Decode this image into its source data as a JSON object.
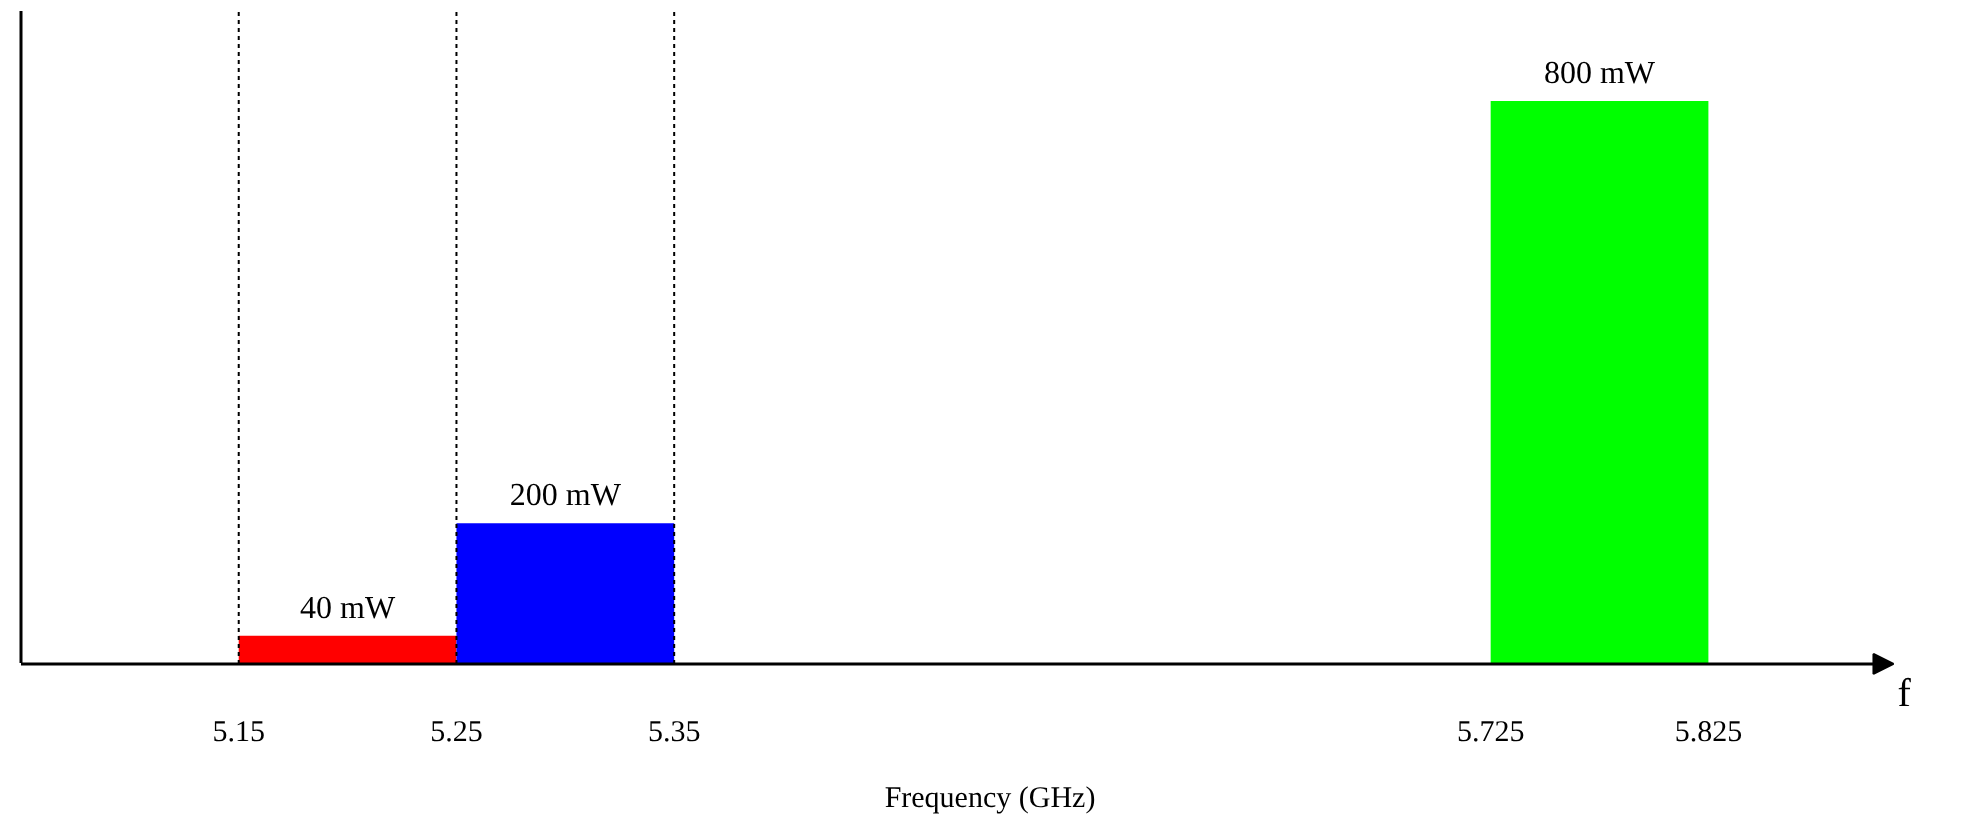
{
  "chart_data": {
    "type": "bar",
    "xlabel": "Frequency (GHz)",
    "x": [
      5.2,
      5.3,
      5.775
    ],
    "values": [
      40,
      200,
      800
    ],
    "value_labels": [
      "40 mW",
      "200 mW",
      "800 mW"
    ],
    "colors": [
      "#ff0000",
      "#0000ff",
      "#00ff00"
    ],
    "xlim": [
      5.05,
      5.91
    ],
    "xticks": [
      5.15,
      5.25,
      5.35,
      5.725,
      5.825
    ],
    "ref_lines": [
      {
        "axis": "x",
        "value": 5.15,
        "line_style": "dotted",
        "color": "#000000"
      },
      {
        "axis": "x",
        "value": 5.25,
        "line_style": "dotted",
        "color": "#000000"
      },
      {
        "axis": "x",
        "value": 5.35,
        "line_style": "dotted",
        "color": "#000000"
      }
    ],
    "annotations": [
      "f"
    ]
  }
}
